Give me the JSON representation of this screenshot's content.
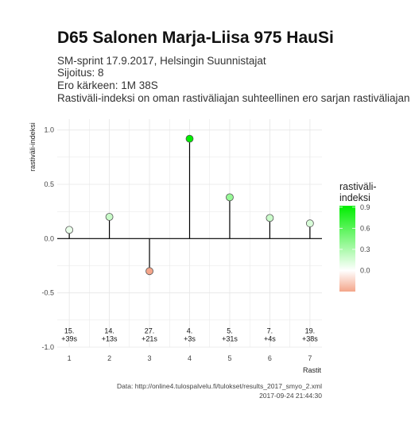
{
  "title": "D65 Salonen Marja-Liisa 975 HauSi",
  "subtitle_lines": [
    "SM-sprint 17.9.2017, Helsingin Suunnistajat",
    "Sijoitus: 8",
    "Ero kärkeen: 1M 38S",
    "Rastiväli-indeksi on oman rastiväliajan suhteellinen ero sarjan rastiväliajan kes"
  ],
  "caption_lines": [
    "Data: http://online4.tulospalvelu.fi/tulokset/results_2017_smyo_2.xml",
    "2017-09-24 21:44:30"
  ],
  "chart_data": {
    "type": "lollipop",
    "xlabel": "Rastit",
    "ylabel": "rastiväli-indeksi",
    "x": [
      1,
      2,
      3,
      4,
      5,
      6,
      7
    ],
    "x_tick_labels": [
      "1",
      "2",
      "3",
      "4",
      "5",
      "6",
      "7"
    ],
    "values": [
      0.08,
      0.2,
      -0.3,
      0.92,
      0.38,
      0.19,
      0.14
    ],
    "xlim": [
      0.7,
      7.3
    ],
    "ylim": [
      -1.0,
      1.1
    ],
    "y_ticks": [
      -1.0,
      -0.5,
      0.0,
      0.5,
      1.0
    ],
    "y_tick_labels": [
      "-1.0",
      "-0.5",
      "0.0",
      "0.5",
      "1.0"
    ],
    "annotations": [
      {
        "x": 1,
        "line1": "15.",
        "line2": "+39s"
      },
      {
        "x": 2,
        "line1": "14.",
        "line2": "+13s"
      },
      {
        "x": 3,
        "line1": "27.",
        "line2": "+21s"
      },
      {
        "x": 4,
        "line1": "4.",
        "line2": "+3s"
      },
      {
        "x": 5,
        "line1": "5.",
        "line2": "+31s"
      },
      {
        "x": 6,
        "line1": "7.",
        "line2": "+4s"
      },
      {
        "x": 7,
        "line1": "19.",
        "line2": "+38s"
      }
    ],
    "annotation_y": -0.9,
    "grid": true,
    "legend": {
      "title_lines": [
        "rastiväli-",
        "indeksi"
      ],
      "position": "right",
      "range": [
        -0.3,
        0.92
      ],
      "ticks": [
        0.9,
        0.6,
        0.3,
        0.0
      ],
      "tick_labels": [
        "0.9",
        "0.6",
        "0.3",
        "0.0"
      ],
      "colors": {
        "low": "#f4a58a",
        "mid": "#ffffff",
        "high": "#00ee00"
      }
    },
    "colors": {
      "stem": "#000000",
      "point_stroke": "#555555",
      "grid": "#e6e6e6",
      "zero_line": "#000000"
    }
  }
}
